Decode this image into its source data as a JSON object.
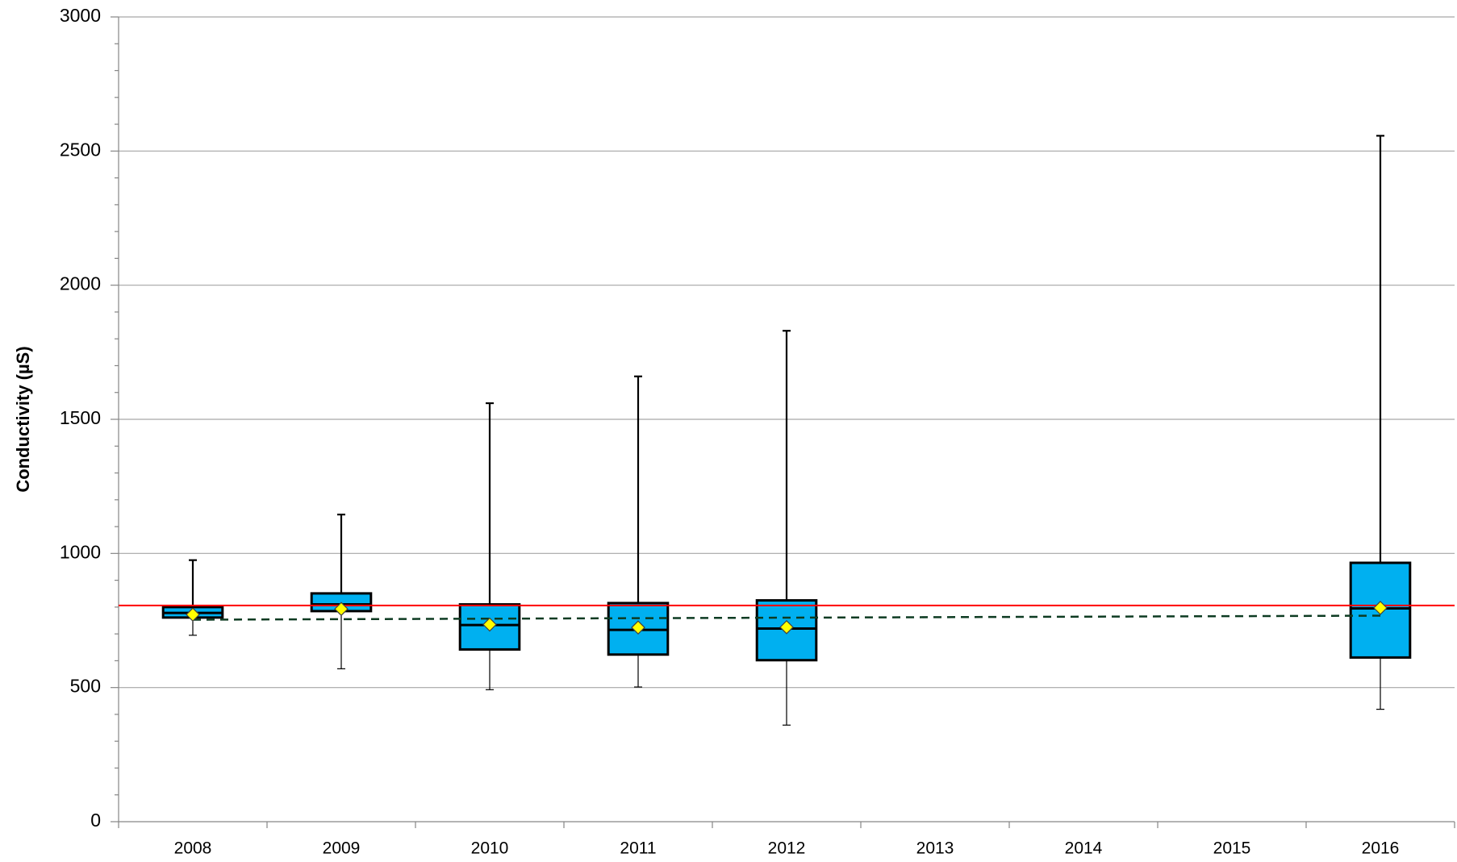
{
  "chart_data": {
    "type": "box",
    "y_label": "Conductivity (µS)",
    "categories": [
      "2008",
      "2009",
      "2010",
      "2011",
      "2012",
      "2013",
      "2014",
      "2015",
      "2016"
    ],
    "min": [
      695,
      570,
      492,
      502,
      360,
      null,
      null,
      null,
      419
    ],
    "q1": [
      761,
      785,
      642,
      623,
      602,
      null,
      null,
      null,
      612
    ],
    "median": [
      778,
      810,
      733,
      715,
      720,
      null,
      null,
      null,
      795
    ],
    "q3": [
      800,
      851,
      810,
      815,
      825,
      null,
      null,
      null,
      965
    ],
    "max": [
      975,
      1145,
      1560,
      1660,
      1830,
      null,
      null,
      null,
      2557
    ],
    "mean": [
      772,
      793,
      735,
      724,
      725,
      null,
      null,
      null,
      797
    ],
    "box_color": "#00b0f0",
    "mean_color": "#ffff00",
    "reference_line": {
      "value": 806,
      "color": "#ff0000"
    },
    "trend_line": {
      "start": 753,
      "end": 768,
      "color": "#0d3b22"
    },
    "ylim": [
      0,
      3000
    ],
    "yticks": [
      0,
      500,
      1000,
      1500,
      2000,
      2500,
      3000
    ],
    "yminor_ticks": [
      100,
      200,
      300,
      400,
      600,
      700,
      800,
      900,
      1100,
      1200,
      1300,
      1400,
      1600,
      1700,
      1800,
      1900,
      2100,
      2200,
      2300,
      2400,
      2600,
      2700,
      2800,
      2900
    ],
    "grid": true
  }
}
